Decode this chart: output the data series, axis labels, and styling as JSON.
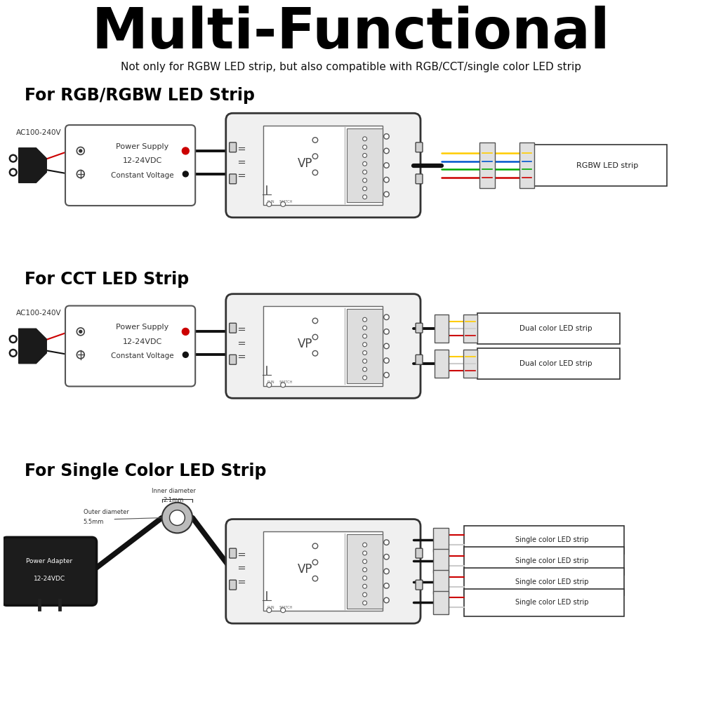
{
  "title": "Multi-Functional",
  "subtitle": "Not only for RGBW LED strip, but also compatible with RGB/CCT/single color LED strip",
  "section1": "For RGB/RGBW LED Strip",
  "section2": "For CCT LED Strip",
  "section3": "For Single Color LED Strip",
  "bg_color": "#ffffff",
  "text_color": "#000000",
  "gray_color": "#888888",
  "light_gray": "#cccccc",
  "dark_gray": "#444444",
  "red_color": "#cc0000",
  "wire_r": "#cc0000",
  "wire_g": "#00aa00",
  "wire_b": "#0055cc",
  "wire_y": "#ffcc00",
  "wire_w": "#cccccc",
  "wire_black": "#111111"
}
